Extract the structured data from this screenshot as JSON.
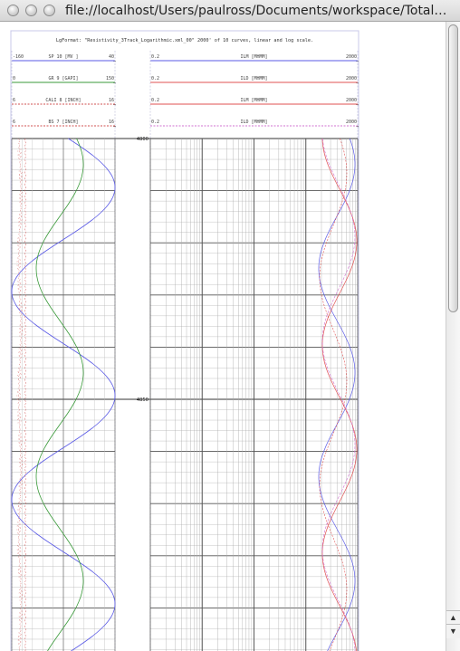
{
  "window": {
    "title": "file://localhost/Users/paulross/Documents/workspace/TotalDep..."
  },
  "plot": {
    "title": "LgFormat: \"Resistivity_3Track_Logarithmic.xml_00\" 2000' of 10 curves, linear and log scale."
  },
  "tracks": {
    "left": {
      "scale": "linear",
      "headers": [
        {
          "left": "-160",
          "name": "SP 10 [MV ]",
          "right": "40",
          "color": "#5a5ae6"
        },
        {
          "left": "0",
          "name": "GR 9 [GAPI]",
          "right": "150",
          "color": "#3a9a3a"
        },
        {
          "left": "6",
          "name": "CALI 8 [INCH]",
          "right": "16",
          "color": "#d05050"
        },
        {
          "left": "6",
          "name": "BS 7 [INCH]",
          "right": "16",
          "color": "#d05050"
        }
      ]
    },
    "right": {
      "scale": "logarithmic",
      "headers": [
        {
          "left": "0.2",
          "name": "ILM [MHMM]",
          "right": "2000",
          "color": "#5a5ae6"
        },
        {
          "left": "0.2",
          "name": "ILD [MHMM]",
          "right": "2000",
          "color": "#e05050"
        },
        {
          "left": "0.2",
          "name": "ILM [MHMM]",
          "right": "2000",
          "color": "#e05050"
        },
        {
          "left": "0.2",
          "name": "ILD [MHMM]",
          "right": "2000",
          "color": "#d070d0"
        }
      ]
    }
  },
  "depth_track": {
    "labels": [
      "4800",
      "4850"
    ]
  }
}
